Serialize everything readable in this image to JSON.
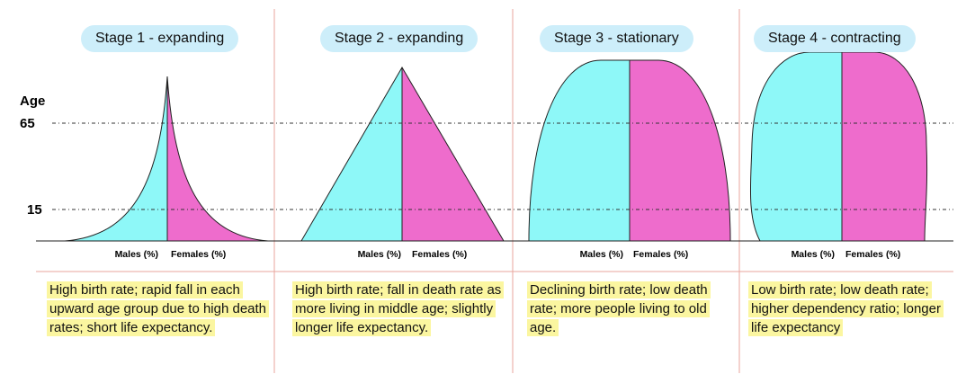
{
  "axis": {
    "label": "Age",
    "ticks": [
      "65",
      "15"
    ]
  },
  "stages": [
    {
      "title": "Stage 1 - expanding",
      "males_label": "Males (%)",
      "females_label": "Females (%)",
      "description": "High birth rate; rapid fall in each upward age group due to high death rates; short life expectancy."
    },
    {
      "title": "Stage 2 - expanding",
      "males_label": "Males (%)",
      "females_label": "Females (%)",
      "description": "High birth rate; fall in death rate as more living in middle age; slightly longer life expectancy."
    },
    {
      "title": "Stage 3 - stationary",
      "males_label": "Males (%)",
      "females_label": "Females (%)",
      "description": "Declining birth rate; low death rate; more people living to old age."
    },
    {
      "title": "Stage 4 - contracting",
      "males_label": "Males (%)",
      "females_label": "Females (%)",
      "description": "Low birth rate; low death rate; higher dependency ratio; longer life expectancy"
    }
  ]
}
